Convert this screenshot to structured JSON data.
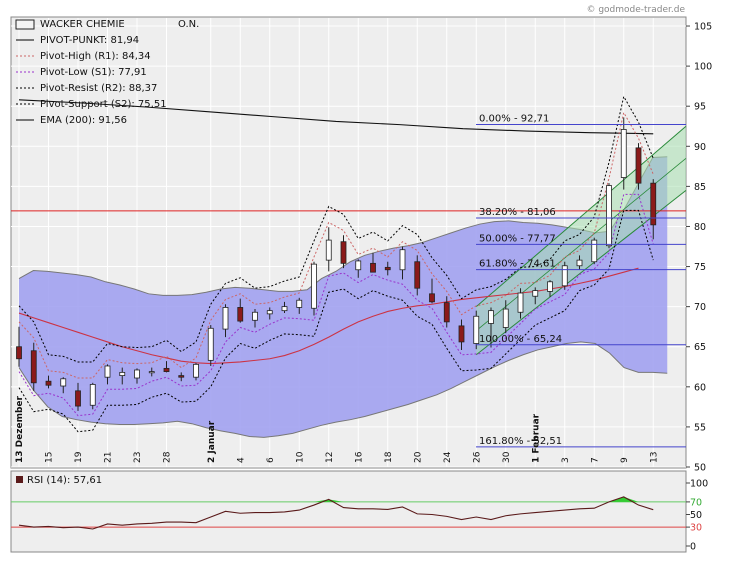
{
  "watermark": "© godmode-trader.de",
  "chart_data": {
    "type": "candlestick",
    "title": "WACKER CHEMIE O.N.",
    "legend": [
      {
        "label": "WACKER CHEMIE",
        "extra": "O.N.",
        "style": "box",
        "color": "#000000"
      },
      {
        "label": "PIVOT-PUNKT: 81,94",
        "style": "solid",
        "color": "#000000"
      },
      {
        "label": "Pivot-High (R1): 84,34",
        "style": "dotted",
        "color": "#cc6666"
      },
      {
        "label": "Pivot-Low (S1): 77,91",
        "style": "dotted",
        "color": "#9933cc"
      },
      {
        "label": "Pivot-Resist (R2): 88,37",
        "style": "dotted",
        "color": "#000000"
      },
      {
        "label": "Pivot-Support (S2): 75,51",
        "style": "dotted",
        "color": "#000000"
      },
      {
        "label": "EMA (200): 91,56",
        "style": "solid",
        "color": "#000000"
      }
    ],
    "y_axis": {
      "min": 50,
      "max": 106,
      "ticks": [
        50,
        55,
        60,
        65,
        70,
        75,
        80,
        85,
        90,
        95,
        100,
        105
      ]
    },
    "x_labels": [
      "13 Dezember",
      "15",
      "19",
      "21",
      "23",
      "28",
      "2 Januar",
      "4",
      "6",
      "10",
      "12",
      "16",
      "18",
      "20",
      "24",
      "26",
      "30",
      "1 Februar",
      "3",
      "7",
      "9",
      "13"
    ],
    "x_label_index": [
      0,
      2,
      4,
      6,
      8,
      10,
      13,
      15,
      17,
      19,
      21,
      23,
      25,
      27,
      29,
      31,
      33,
      35,
      37,
      39,
      41,
      43
    ],
    "candles": [
      {
        "o": 65,
        "h": 67.5,
        "l": 62.5,
        "c": 63.5
      },
      {
        "o": 64.5,
        "h": 65.5,
        "l": 59.5,
        "c": 60.5
      },
      {
        "o": 60.7,
        "h": 61.4,
        "l": 59.8,
        "c": 60.2
      },
      {
        "o": 60.1,
        "h": 61.2,
        "l": 59.2,
        "c": 61
      },
      {
        "o": 59.5,
        "h": 60.5,
        "l": 57,
        "c": 57.6
      },
      {
        "o": 57.7,
        "h": 60.5,
        "l": 57.2,
        "c": 60.3
      },
      {
        "o": 61.2,
        "h": 62.8,
        "l": 60.3,
        "c": 62.6
      },
      {
        "o": 61.4,
        "h": 62.4,
        "l": 60.3,
        "c": 61.8
      },
      {
        "o": 61.1,
        "h": 62.3,
        "l": 60.4,
        "c": 62.1
      },
      {
        "o": 61.8,
        "h": 62.4,
        "l": 61.3,
        "c": 61.9
      },
      {
        "o": 62.3,
        "h": 63.2,
        "l": 61.8,
        "c": 61.9
      },
      {
        "o": 61.4,
        "h": 61.8,
        "l": 60.7,
        "c": 61.2
      },
      {
        "o": 61.2,
        "h": 63,
        "l": 60.8,
        "c": 62.8
      },
      {
        "o": 63.3,
        "h": 67.7,
        "l": 62.6,
        "c": 67.3
      },
      {
        "o": 67.2,
        "h": 70.3,
        "l": 66.2,
        "c": 69.9
      },
      {
        "o": 69.9,
        "h": 71,
        "l": 68,
        "c": 68.2
      },
      {
        "o": 68.3,
        "h": 69.7,
        "l": 67.4,
        "c": 69.3
      },
      {
        "o": 69.1,
        "h": 69.9,
        "l": 68.4,
        "c": 69.5
      },
      {
        "o": 69.5,
        "h": 70.6,
        "l": 69.2,
        "c": 70
      },
      {
        "o": 69.9,
        "h": 71.1,
        "l": 69.1,
        "c": 70.8
      },
      {
        "o": 69.8,
        "h": 75.6,
        "l": 68.9,
        "c": 75.3
      },
      {
        "o": 75.8,
        "h": 79.9,
        "l": 74.4,
        "c": 78.3
      },
      {
        "o": 78.1,
        "h": 78.9,
        "l": 74.8,
        "c": 75.4
      },
      {
        "o": 74.6,
        "h": 75.9,
        "l": 73.6,
        "c": 75.7
      },
      {
        "o": 75.4,
        "h": 76.7,
        "l": 74.6,
        "c": 74.3
      },
      {
        "o": 74.9,
        "h": 75.6,
        "l": 73.9,
        "c": 74.6
      },
      {
        "o": 74.6,
        "h": 77.5,
        "l": 73.4,
        "c": 77.1
      },
      {
        "o": 75.6,
        "h": 76.4,
        "l": 71.4,
        "c": 72.3
      },
      {
        "o": 71.6,
        "h": 73.5,
        "l": 70.4,
        "c": 70.6
      },
      {
        "o": 70.5,
        "h": 71.3,
        "l": 67.4,
        "c": 68.1
      },
      {
        "o": 67.6,
        "h": 68.4,
        "l": 64.6,
        "c": 65.6
      },
      {
        "o": 65.4,
        "h": 69.5,
        "l": 64.7,
        "c": 68.8
      },
      {
        "o": 67.9,
        "h": 69.9,
        "l": 64.9,
        "c": 69.5
      },
      {
        "o": 67.4,
        "h": 70.8,
        "l": 66.7,
        "c": 69.7
      },
      {
        "o": 69.3,
        "h": 72.3,
        "l": 68.5,
        "c": 71.7
      },
      {
        "o": 71.3,
        "h": 72.4,
        "l": 70.3,
        "c": 72.0
      },
      {
        "o": 71.9,
        "h": 73.3,
        "l": 71.2,
        "c": 73.1
      },
      {
        "o": 72.6,
        "h": 75.6,
        "l": 72.1,
        "c": 75.1
      },
      {
        "o": 75.1,
        "h": 76.4,
        "l": 74.6,
        "c": 75.8
      },
      {
        "o": 75.6,
        "h": 78.6,
        "l": 75.3,
        "c": 78.3
      },
      {
        "o": 77.6,
        "h": 85.4,
        "l": 77.3,
        "c": 85.1
      },
      {
        "o": 86.1,
        "h": 93.6,
        "l": 84.6,
        "c": 92.1
      },
      {
        "o": 89.8,
        "h": 90.4,
        "l": 84.6,
        "c": 85.4
      },
      {
        "o": 85.4,
        "h": 85.9,
        "l": 78.4,
        "c": 80.2
      }
    ],
    "ema200": [
      95.8,
      95.4,
      94.9,
      94.3,
      93.7,
      93.1,
      92.7,
      92.2,
      91.9,
      91.7,
      91.56
    ],
    "bollinger_upper": [
      73.5,
      74.5,
      74.4,
      74.2,
      74.0,
      73.7,
      73.1,
      72.7,
      72.2,
      71.6,
      71.4,
      71.4,
      71.5,
      71.8,
      72.2,
      72.4,
      72.3,
      72.1,
      71.9,
      71.9,
      72.1,
      73.5,
      74.4,
      75.6,
      76.4,
      76.9,
      77.3,
      77.6,
      78.0,
      78.6,
      79.2,
      79.8,
      80.3,
      80.6,
      80.7,
      80.5,
      80.4,
      80.2,
      79.9,
      79.6,
      79.2,
      79.4,
      82.1,
      85.4,
      88.6,
      88.7
    ],
    "bollinger_lower": [
      62.4,
      59.6,
      57.5,
      56.3,
      55.9,
      55.6,
      55.4,
      55.3,
      55.3,
      55.4,
      55.5,
      55.7,
      55.4,
      54.9,
      54.5,
      54.2,
      53.8,
      53.7,
      53.9,
      54.2,
      54.7,
      55.2,
      55.6,
      55.9,
      56.3,
      56.8,
      57.3,
      57.8,
      58.4,
      59.0,
      59.8,
      60.7,
      61.6,
      62.5,
      63.3,
      64.0,
      64.6,
      65.0,
      65.4,
      65.6,
      65.4,
      64.2,
      62.4,
      61.8,
      61.8,
      61.7
    ],
    "bollinger_mid": [
      69.2,
      68.6,
      68.0,
      67.4,
      66.8,
      66.2,
      65.6,
      65.0,
      64.5,
      64.0,
      63.6,
      63.2,
      63.0,
      62.9,
      63.0,
      63.1,
      63.3,
      63.5,
      63.9,
      64.5,
      65.3,
      66.2,
      67.2,
      68.1,
      68.8,
      69.4,
      69.8,
      70.1,
      70.3,
      70.6,
      70.9,
      71.1,
      71.3,
      71.5,
      71.7,
      71.9,
      72.2,
      72.5,
      72.9,
      73.3,
      73.8,
      74.3,
      74.8
    ],
    "fib_levels": [
      {
        "label": "0.00% - 92,71",
        "value": 92.71
      },
      {
        "label": "38.20% - 81,06",
        "value": 81.06
      },
      {
        "label": "50.00% - 77,77",
        "value": 77.77
      },
      {
        "label": "61.80% - 74,61",
        "value": 74.61
      },
      {
        "label": "100.00% - 65,24",
        "value": 65.24
      },
      {
        "label": "161.80% - 52,51",
        "value": 52.51
      }
    ],
    "pivot_line": 81.94,
    "rsi": {
      "label": "RSI (14): 57,61",
      "y_ticks": [
        0,
        30,
        50,
        70,
        100
      ],
      "upper": 70,
      "lower": 30,
      "values": [
        33,
        30,
        31,
        29,
        30,
        27,
        35,
        33,
        35,
        36,
        38,
        38,
        37,
        46,
        55,
        52,
        53,
        53,
        54,
        57,
        65,
        74,
        61,
        59,
        59,
        58,
        62,
        51,
        50,
        47,
        42,
        46,
        42,
        48,
        51,
        53,
        55,
        57,
        59,
        60,
        70,
        78,
        65,
        57.61
      ]
    }
  }
}
